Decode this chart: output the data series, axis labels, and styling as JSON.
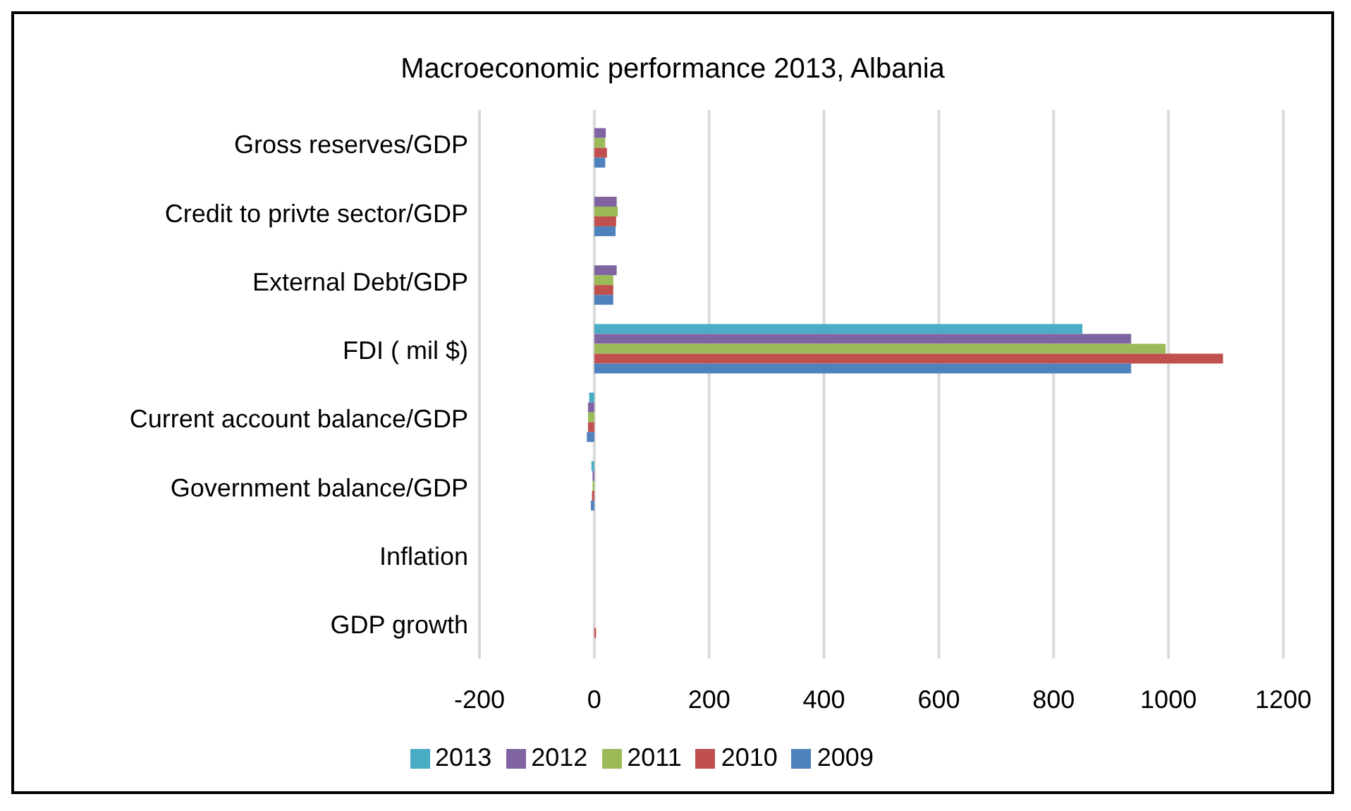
{
  "chart_data": {
    "type": "bar",
    "orientation": "horizontal",
    "title": "Macroeconomic performance 2013, Albania",
    "categories": [
      "Gross reserves/GDP",
      "Credit to privte sector/GDP",
      "External Debt/GDP",
      "FDI ( mil $)",
      "Current account balance/GDP",
      "Government balance/GDP",
      "Inflation",
      "GDP  growth"
    ],
    "series": [
      {
        "name": "2013",
        "color": "#4bacc6",
        "values": [
          null,
          null,
          null,
          850,
          -9,
          -5,
          null,
          null
        ]
      },
      {
        "name": "2012",
        "color": "#8064a2",
        "values": [
          20,
          39,
          39,
          935,
          -11,
          -3,
          null,
          null
        ]
      },
      {
        "name": "2011",
        "color": "#9bbb59",
        "values": [
          19,
          41,
          33,
          995,
          -11,
          -3,
          null,
          null
        ]
      },
      {
        "name": "2010",
        "color": "#c0504d",
        "values": [
          22,
          38,
          33,
          1095,
          -11,
          -4,
          null,
          3
        ]
      },
      {
        "name": "2009",
        "color": "#4f81bd",
        "values": [
          19,
          37,
          33,
          935,
          -13,
          -6,
          null,
          null
        ]
      }
    ],
    "xlim": [
      -200,
      1200
    ],
    "xticks": [
      -200,
      0,
      200,
      400,
      600,
      800,
      1000,
      1200
    ],
    "grid": "x",
    "legend": "bottom"
  }
}
